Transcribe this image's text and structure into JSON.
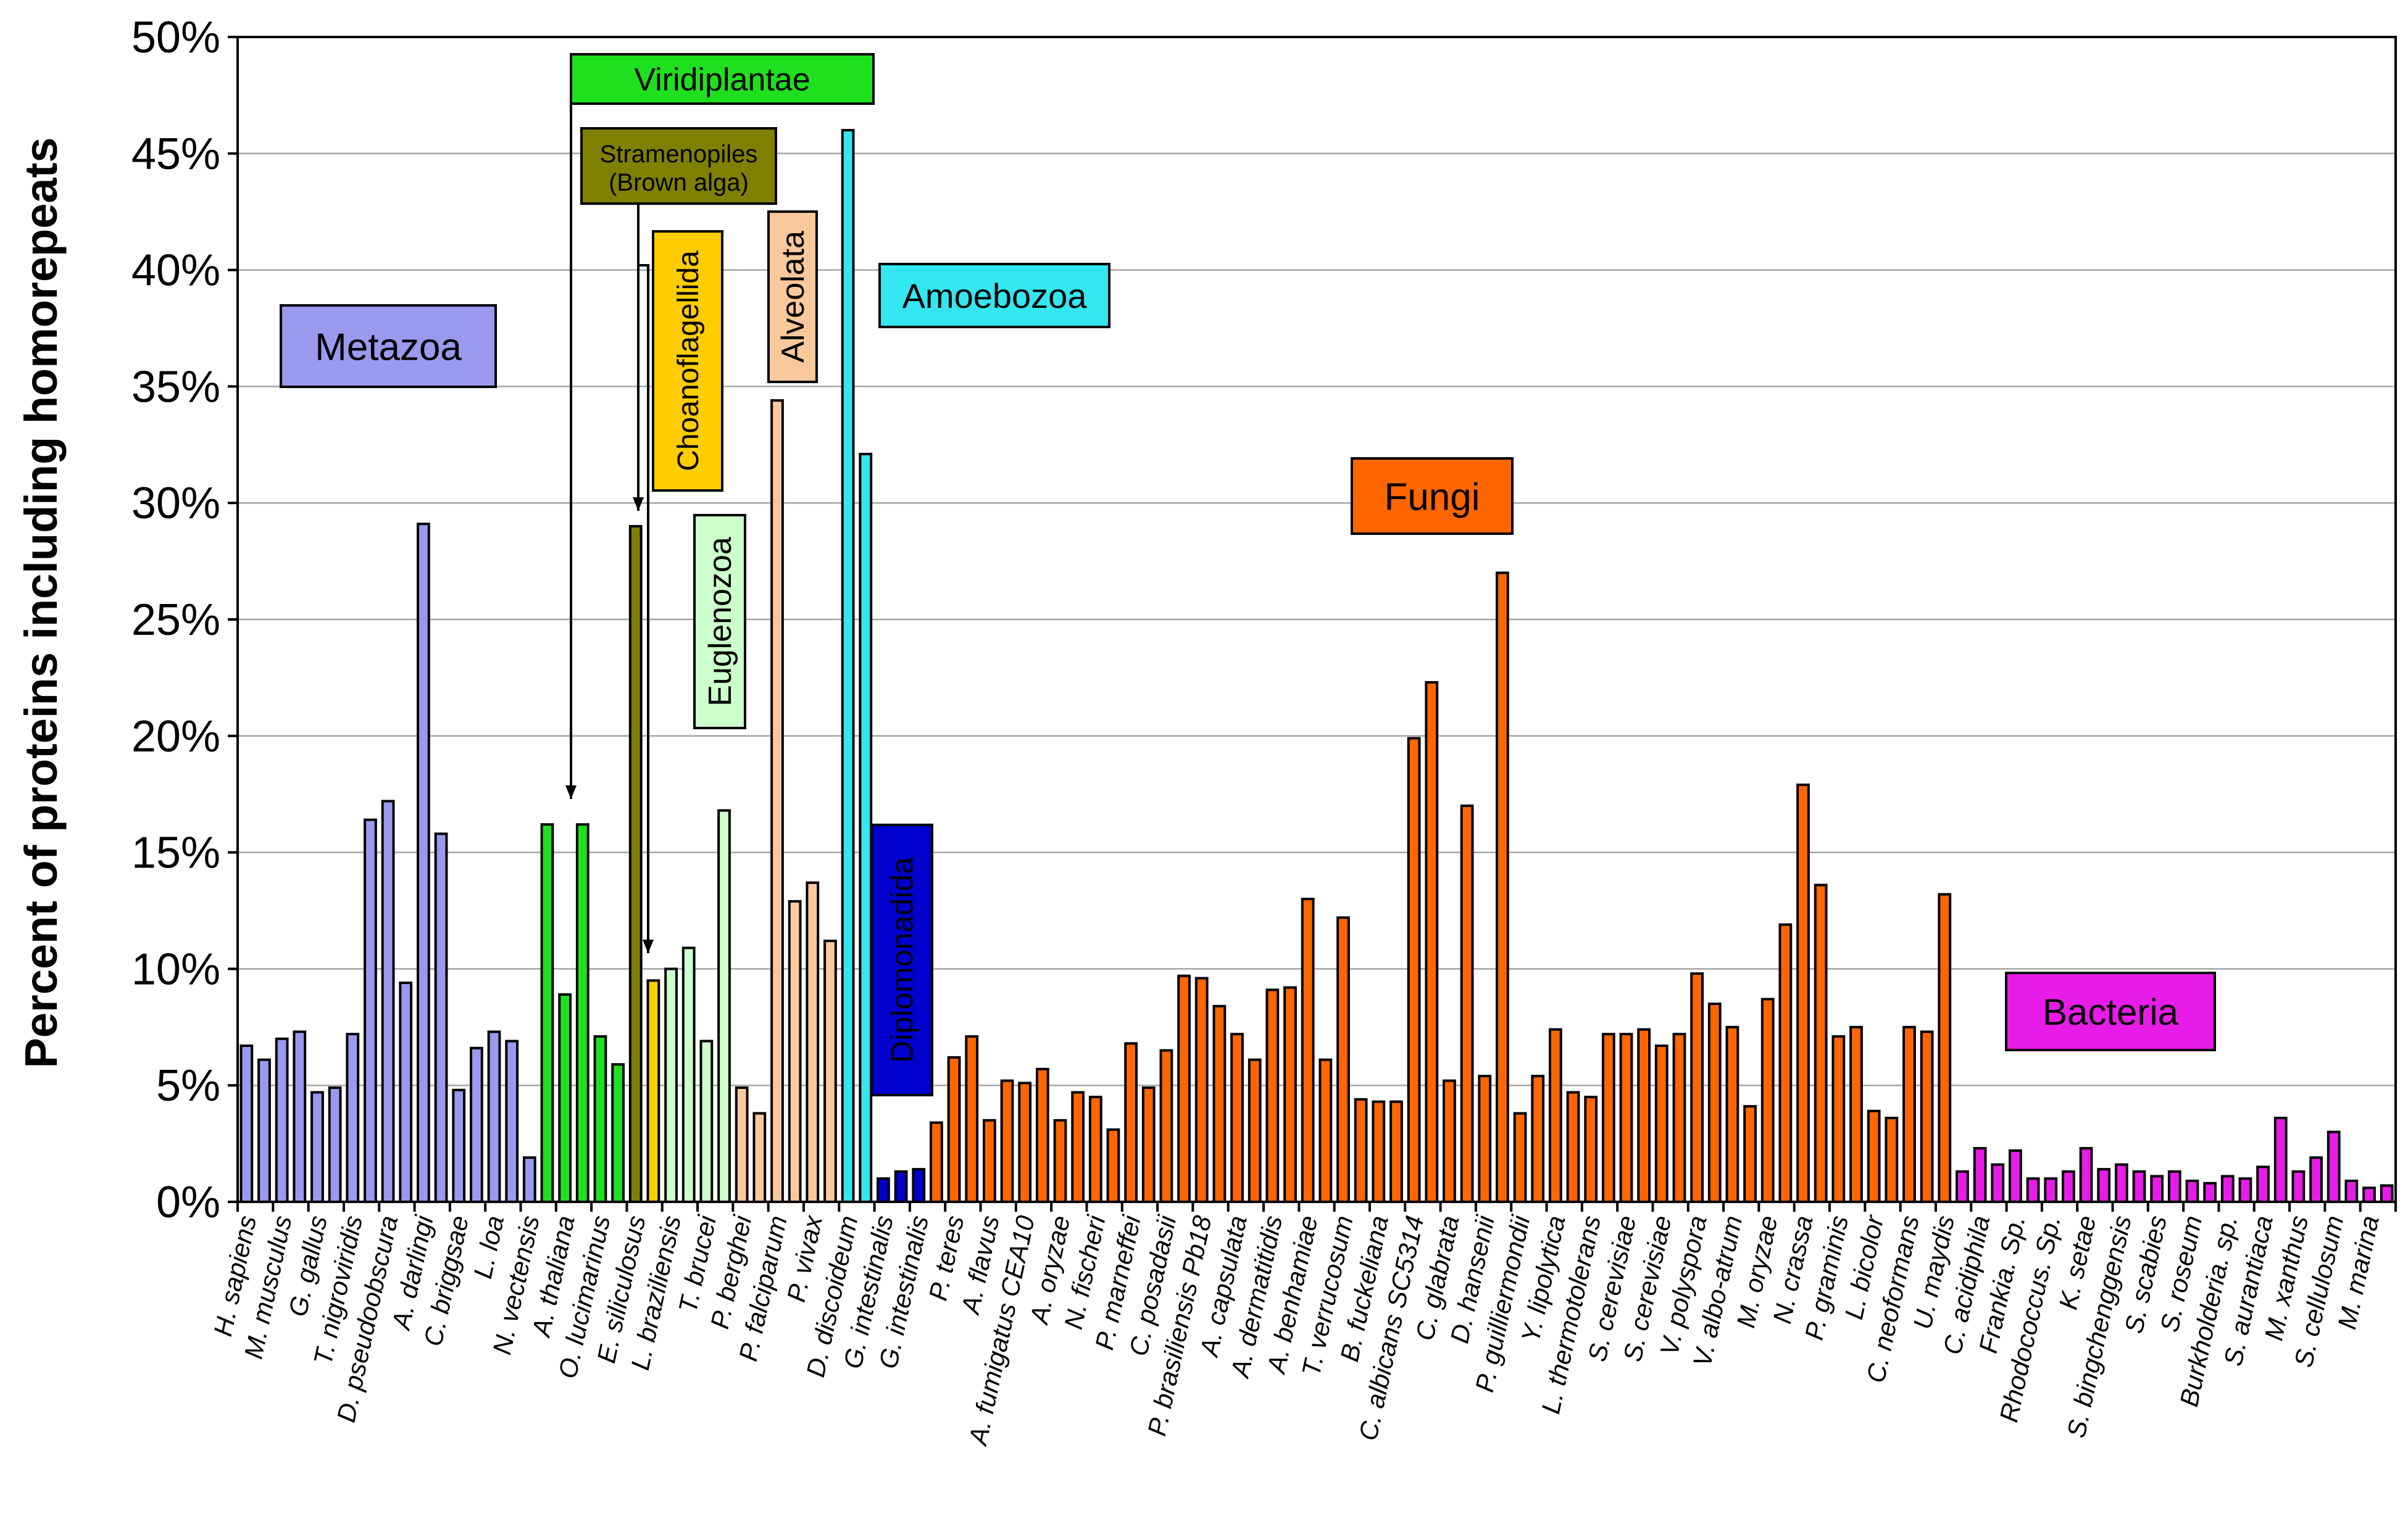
{
  "chart_data": {
    "type": "bar",
    "title": "",
    "xlabel": "",
    "ylabel": "Percent of proteins including homorepeats",
    "ylim": [
      0,
      50
    ],
    "yticks": [
      "0%",
      "5%",
      "10%",
      "15%",
      "20%",
      "25%",
      "30%",
      "35%",
      "40%",
      "45%",
      "50%"
    ],
    "grid": true,
    "colors": {
      "Metazoa": "#9999ee",
      "Viridiplantae": "#1fe01f",
      "Stramenopiles": "#808000",
      "Choanoflagellida": "#ffcc00",
      "Euglenozoa": "#ccffcc",
      "Alveolata": "#f9c89b",
      "Amoebozoa": "#33e6f0",
      "Diplomonadida": "#0000cc",
      "Fungi": "#ff6600",
      "Bacteria": "#e81ce8"
    },
    "groups": [
      {
        "key": "Metazoa",
        "label": "Metazoa",
        "color": "#9999ee",
        "text_color": "#000000"
      },
      {
        "key": "Viridiplantae",
        "label": "Viridiplantae",
        "color": "#1fe01f",
        "text_color": "#000000"
      },
      {
        "key": "Stramenopiles",
        "label_line1": "Stramenopiles",
        "label_line2": "(Brown alga)",
        "color": "#808000",
        "text_color": "#ffffff"
      },
      {
        "key": "Choanoflagellida",
        "label": "Choanoflagellida",
        "color": "#ffcc00",
        "text_color": "#000000"
      },
      {
        "key": "Euglenozoa",
        "label": "Euglenozoa",
        "color": "#ccffcc",
        "text_color": "#000000"
      },
      {
        "key": "Alveolata",
        "label": "Alveolata",
        "color": "#f9c89b",
        "text_color": "#000000"
      },
      {
        "key": "Amoebozoa",
        "label": "Amoebozoa",
        "color": "#33e6f0",
        "text_color": "#000000"
      },
      {
        "key": "Diplomonadida",
        "label": "Diplomonadida",
        "color": "#0000cc",
        "text_color": "#ffffff"
      },
      {
        "key": "Fungi",
        "label": "Fungi",
        "color": "#ff6600",
        "text_color": "#000000"
      },
      {
        "key": "Bacteria",
        "label": "Bacteria",
        "color": "#e81ce8",
        "text_color": "#000000"
      }
    ],
    "tick_labels": [
      "H. sapiens",
      "M. musculus",
      "G. gallus",
      "T. nigroviridis",
      "D. pseudoobscura",
      "A. darlingi",
      "C. briggsae",
      "L. loa",
      "N. vectensis",
      "A. thaliana",
      "O. lucimarinus",
      "E. siliculosus",
      "L. braziliensis",
      "T. brucei",
      "P. berghei",
      "P. falciparum",
      "P. vivax",
      "D. discoideum",
      "G. intestinalis",
      "G. intestinalis",
      "P. teres",
      "A. flavus",
      "A. fumigatus CEA10",
      "A. oryzae",
      "N. fischeri",
      "P. marneffei",
      "C. posadasii",
      "P. brasiliensis Pb18",
      "A. capsulata",
      "A. dermatitidis",
      "A. benhamiae",
      "T. verrucosum",
      "B. fuckeliana",
      "C. albicans SC5314",
      "C. glabrata",
      "D. hansenii",
      "P. guilliermondii",
      "Y. lipolytica",
      "L. thermotolerans",
      "S. cerevisiae",
      "S. cerevisiae",
      "V. polyspora",
      "V. albo-atrum",
      "M. oryzae",
      "N. crassa",
      "P. graminis",
      "L. bicolor",
      "C. neoformans",
      "U. maydis",
      "C. acidiphila",
      "Frankia. Sp.",
      "Rhodococcus. Sp.",
      "K. setae",
      "S. bingchenggensis",
      "S. scabies",
      "S. roseum",
      "Burkholderia. sp.",
      "S. aurantiaca",
      "M. xanthus",
      "S. cellulosum",
      "M. marina"
    ],
    "bars": [
      {
        "group": "Metazoa",
        "value": 6.7
      },
      {
        "group": "Metazoa",
        "value": 6.1
      },
      {
        "group": "Metazoa",
        "value": 7.0
      },
      {
        "group": "Metazoa",
        "value": 7.3
      },
      {
        "group": "Metazoa",
        "value": 4.7
      },
      {
        "group": "Metazoa",
        "value": 4.9
      },
      {
        "group": "Metazoa",
        "value": 7.2
      },
      {
        "group": "Metazoa",
        "value": 16.4
      },
      {
        "group": "Metazoa",
        "value": 17.2
      },
      {
        "group": "Metazoa",
        "value": 9.4
      },
      {
        "group": "Metazoa",
        "value": 29.1
      },
      {
        "group": "Metazoa",
        "value": 15.8
      },
      {
        "group": "Metazoa",
        "value": 4.8
      },
      {
        "group": "Metazoa",
        "value": 6.6
      },
      {
        "group": "Metazoa",
        "value": 7.3
      },
      {
        "group": "Metazoa",
        "value": 6.9
      },
      {
        "group": "Metazoa",
        "value": 1.9
      },
      {
        "group": "Viridiplantae",
        "value": 16.2
      },
      {
        "group": "Viridiplantae",
        "value": 8.9
      },
      {
        "group": "Viridiplantae",
        "value": 16.2
      },
      {
        "group": "Viridiplantae",
        "value": 7.1
      },
      {
        "group": "Viridiplantae",
        "value": 5.9
      },
      {
        "group": "Stramenopiles",
        "value": 29.0
      },
      {
        "group": "Choanoflagellida",
        "value": 9.5
      },
      {
        "group": "Euglenozoa",
        "value": 10.0
      },
      {
        "group": "Euglenozoa",
        "value": 10.9
      },
      {
        "group": "Euglenozoa",
        "value": 6.9
      },
      {
        "group": "Euglenozoa",
        "value": 16.8
      },
      {
        "group": "Alveolata",
        "value": 4.9
      },
      {
        "group": "Alveolata",
        "value": 3.8
      },
      {
        "group": "Alveolata",
        "value": 34.4
      },
      {
        "group": "Alveolata",
        "value": 12.9
      },
      {
        "group": "Alveolata",
        "value": 13.7
      },
      {
        "group": "Alveolata",
        "value": 11.2
      },
      {
        "group": "Amoebozoa",
        "value": 46.0
      },
      {
        "group": "Amoebozoa",
        "value": 32.1
      },
      {
        "group": "Diplomonadida",
        "value": 1.0
      },
      {
        "group": "Diplomonadida",
        "value": 1.3
      },
      {
        "group": "Diplomonadida",
        "value": 1.4
      },
      {
        "group": "Fungi",
        "value": 3.4
      },
      {
        "group": "Fungi",
        "value": 6.2
      },
      {
        "group": "Fungi",
        "value": 7.1
      },
      {
        "group": "Fungi",
        "value": 3.5
      },
      {
        "group": "Fungi",
        "value": 5.2
      },
      {
        "group": "Fungi",
        "value": 5.1
      },
      {
        "group": "Fungi",
        "value": 5.7
      },
      {
        "group": "Fungi",
        "value": 3.5
      },
      {
        "group": "Fungi",
        "value": 4.7
      },
      {
        "group": "Fungi",
        "value": 4.5
      },
      {
        "group": "Fungi",
        "value": 3.1
      },
      {
        "group": "Fungi",
        "value": 6.8
      },
      {
        "group": "Fungi",
        "value": 4.9
      },
      {
        "group": "Fungi",
        "value": 6.5
      },
      {
        "group": "Fungi",
        "value": 9.7
      },
      {
        "group": "Fungi",
        "value": 9.6
      },
      {
        "group": "Fungi",
        "value": 8.4
      },
      {
        "group": "Fungi",
        "value": 7.2
      },
      {
        "group": "Fungi",
        "value": 6.1
      },
      {
        "group": "Fungi",
        "value": 9.1
      },
      {
        "group": "Fungi",
        "value": 9.2
      },
      {
        "group": "Fungi",
        "value": 13.0
      },
      {
        "group": "Fungi",
        "value": 6.1
      },
      {
        "group": "Fungi",
        "value": 12.2
      },
      {
        "group": "Fungi",
        "value": 4.4
      },
      {
        "group": "Fungi",
        "value": 4.3
      },
      {
        "group": "Fungi",
        "value": 4.3
      },
      {
        "group": "Fungi",
        "value": 19.9
      },
      {
        "group": "Fungi",
        "value": 22.3
      },
      {
        "group": "Fungi",
        "value": 5.2
      },
      {
        "group": "Fungi",
        "value": 17.0
      },
      {
        "group": "Fungi",
        "value": 5.4
      },
      {
        "group": "Fungi",
        "value": 27.0
      },
      {
        "group": "Fungi",
        "value": 3.8
      },
      {
        "group": "Fungi",
        "value": 5.4
      },
      {
        "group": "Fungi",
        "value": 7.4
      },
      {
        "group": "Fungi",
        "value": 4.7
      },
      {
        "group": "Fungi",
        "value": 4.5
      },
      {
        "group": "Fungi",
        "value": 7.2
      },
      {
        "group": "Fungi",
        "value": 7.2
      },
      {
        "group": "Fungi",
        "value": 7.4
      },
      {
        "group": "Fungi",
        "value": 6.7
      },
      {
        "group": "Fungi",
        "value": 7.2
      },
      {
        "group": "Fungi",
        "value": 9.8
      },
      {
        "group": "Fungi",
        "value": 8.5
      },
      {
        "group": "Fungi",
        "value": 7.5
      },
      {
        "group": "Fungi",
        "value": 4.1
      },
      {
        "group": "Fungi",
        "value": 8.7
      },
      {
        "group": "Fungi",
        "value": 11.9
      },
      {
        "group": "Fungi",
        "value": 17.9
      },
      {
        "group": "Fungi",
        "value": 13.6
      },
      {
        "group": "Fungi",
        "value": 7.1
      },
      {
        "group": "Fungi",
        "value": 7.5
      },
      {
        "group": "Fungi",
        "value": 3.9
      },
      {
        "group": "Fungi",
        "value": 3.6
      },
      {
        "group": "Fungi",
        "value": 7.5
      },
      {
        "group": "Fungi",
        "value": 7.3
      },
      {
        "group": "Fungi",
        "value": 13.2
      },
      {
        "group": "Bacteria",
        "value": 1.3
      },
      {
        "group": "Bacteria",
        "value": 2.3
      },
      {
        "group": "Bacteria",
        "value": 1.6
      },
      {
        "group": "Bacteria",
        "value": 2.2
      },
      {
        "group": "Bacteria",
        "value": 1.0
      },
      {
        "group": "Bacteria",
        "value": 1.0
      },
      {
        "group": "Bacteria",
        "value": 1.3
      },
      {
        "group": "Bacteria",
        "value": 2.3
      },
      {
        "group": "Bacteria",
        "value": 1.4
      },
      {
        "group": "Bacteria",
        "value": 1.6
      },
      {
        "group": "Bacteria",
        "value": 1.3
      },
      {
        "group": "Bacteria",
        "value": 1.1
      },
      {
        "group": "Bacteria",
        "value": 1.3
      },
      {
        "group": "Bacteria",
        "value": 0.9
      },
      {
        "group": "Bacteria",
        "value": 0.8
      },
      {
        "group": "Bacteria",
        "value": 1.1
      },
      {
        "group": "Bacteria",
        "value": 1.0
      },
      {
        "group": "Bacteria",
        "value": 1.5
      },
      {
        "group": "Bacteria",
        "value": 3.6
      },
      {
        "group": "Bacteria",
        "value": 1.3
      },
      {
        "group": "Bacteria",
        "value": 1.9
      },
      {
        "group": "Bacteria",
        "value": 3.0
      },
      {
        "group": "Bacteria",
        "value": 0.9
      },
      {
        "group": "Bacteria",
        "value": 0.6
      },
      {
        "group": "Bacteria",
        "value": 0.7
      }
    ]
  }
}
